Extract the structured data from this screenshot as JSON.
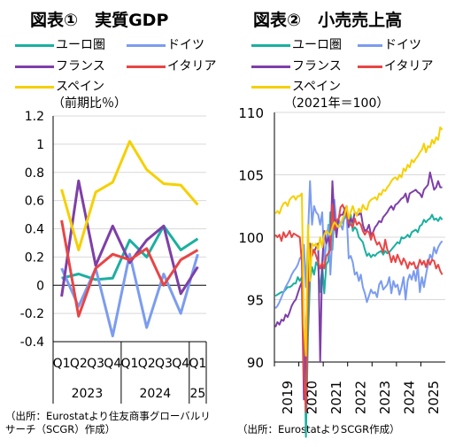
{
  "colors": {
    "euro": "#1ab0a0",
    "germany": "#7b9cf0",
    "france": "#7e3fa8",
    "italy": "#e84545",
    "spain": "#f5d000",
    "grid": "#d9d9d9",
    "axis": "#000000"
  },
  "chart1": {
    "title": "図表①　実質GDP",
    "legend": [
      "ユーロ圏",
      "ドイツ",
      "フランス",
      "イタリア",
      "スペイン"
    ],
    "unit": "（前期比％）",
    "note": [
      "（出所：Eurostatより住友商事グローバルリ",
      "サーチ（SCGR）作成）"
    ]
  },
  "chart2": {
    "title": "図表②　小売売上高",
    "legend": [
      "ユーロ圏",
      "ドイツ",
      "フランス",
      "イタリア",
      "スペイン"
    ],
    "unit": "（2021年＝100）",
    "note": "（出所：EurostatよりSCGR作成）"
  },
  "chart_data": [
    {
      "type": "line",
      "title": "図表①　実質GDP",
      "ylabel": "（前期比％）",
      "ylim": [
        -0.4,
        1.2
      ],
      "yticks": [
        "1.2",
        "1",
        "0.8",
        "0.6",
        "0.4",
        "0.2",
        "0",
        "-0.2",
        "-0.4"
      ],
      "categories": [
        "Q1",
        "Q2",
        "Q3",
        "Q4",
        "Q1",
        "Q2",
        "Q3",
        "Q4",
        "Q1"
      ],
      "year_labels": [
        "2023",
        "2024",
        "25"
      ],
      "series": [
        {
          "name": "ユーロ圏",
          "values": [
            0.05,
            0.08,
            0.04,
            0.05,
            0.32,
            0.2,
            0.42,
            0.25,
            0.33
          ]
        },
        {
          "name": "ドイツ",
          "values": [
            0.12,
            -0.15,
            0.12,
            -0.36,
            0.22,
            -0.3,
            0.08,
            -0.2,
            0.22
          ]
        },
        {
          "name": "フランス",
          "values": [
            -0.08,
            0.74,
            0.14,
            0.42,
            0.16,
            0.32,
            0.42,
            -0.06,
            0.13
          ]
        },
        {
          "name": "イタリア",
          "values": [
            0.46,
            -0.22,
            0.12,
            0.22,
            0.18,
            0.26,
            0.0,
            0.18,
            0.25
          ]
        },
        {
          "name": "スペイン",
          "values": [
            0.68,
            0.25,
            0.66,
            0.73,
            1.02,
            0.82,
            0.72,
            0.71,
            0.57
          ]
        }
      ]
    },
    {
      "type": "line",
      "title": "図表②　小売売上高",
      "ylabel": "（2021年＝100）",
      "ylim": [
        90,
        110
      ],
      "yticks": [
        "110",
        "105",
        "100",
        "95",
        "90"
      ],
      "xlabels": [
        "2019",
        "2020",
        "2021",
        "2022",
        "2023",
        "2024",
        "2025"
      ],
      "x_start": "2019-01",
      "series": [
        {
          "name": "ユーロ圏",
          "values": [
            95.3,
            95.4,
            95.5,
            95.6,
            95.6,
            95.8,
            96.0,
            96.0,
            96.1,
            96.3,
            96.3,
            96.8,
            96.5,
            96.8,
            93.5,
            84.0,
            92.0,
            96.5,
            97.6,
            97.0,
            98.0,
            97.7,
            95.6,
            97.8,
            95.5,
            97.8,
            98.1,
            102.0,
            99.0,
            102.3,
            101.0,
            100.8,
            101.0,
            101.3,
            101.5,
            101.8,
            101.0,
            101.8,
            100.5,
            100.8,
            100.6,
            100.0,
            99.8,
            99.6,
            99.0,
            98.5,
            98.7,
            98.4,
            98.6,
            98.5,
            98.7,
            98.8,
            98.9,
            98.6,
            98.9,
            98.7,
            98.8,
            99.0,
            99.2,
            99.4,
            99.6,
            99.5,
            100.0,
            99.9,
            100.0,
            100.2,
            100.0,
            100.4,
            100.5,
            100.6,
            100.4,
            100.9,
            101.0,
            101.4,
            101.2,
            101.4,
            101.5,
            101.8,
            101.4,
            101.5,
            101.3,
            101.6,
            101.4
          ]
        },
        {
          "name": "ドイツ",
          "values": [
            94.3,
            94.5,
            94.8,
            95.2,
            95.6,
            96.0,
            96.3,
            96.6,
            97.0,
            97.3,
            97.5,
            97.8,
            98.3,
            98.5,
            99.4,
            96.0,
            100.0,
            104.5,
            101.0,
            102.5,
            102.0,
            101.8,
            101.0,
            102.0,
            98.0,
            99.5,
            101.0,
            97.0,
            100.0,
            103.0,
            101.0,
            101.5,
            101.0,
            100.6,
            101.8,
            101.9,
            98.3,
            98.5,
            98.0,
            97.0,
            97.2,
            96.5,
            97.0,
            96.0,
            95.5,
            94.8,
            95.3,
            95.8,
            95.5,
            95.6,
            95.2,
            96.2,
            96.5,
            95.8,
            96.0,
            96.2,
            96.8,
            95.5,
            96.5,
            96.0,
            96.2,
            95.4,
            96.0,
            96.8,
            95.0,
            96.5,
            97.0,
            96.6,
            97.3,
            96.5,
            97.7,
            95.6,
            96.8,
            96.0,
            97.0,
            97.8,
            98.6,
            98.3,
            99.2,
            98.7,
            99.2,
            99.5,
            99.7
          ]
        },
        {
          "name": "フランス",
          "values": [
            92.8,
            93.2,
            93.0,
            93.4,
            93.3,
            93.8,
            93.6,
            94.0,
            94.5,
            94.8,
            95.0,
            95.5,
            96.0,
            96.4,
            87.0,
            92.0,
            97.5,
            99.5,
            99.0,
            98.8,
            99.2,
            99.5,
            90.0,
            98.0,
            100.5,
            99.5,
            100.0,
            99.0,
            104.5,
            101.5,
            100.0,
            101.5,
            101.8,
            101.8,
            102.2,
            102.5,
            100.8,
            101.5,
            101.2,
            102.0,
            101.8,
            101.8,
            102.0,
            101.0,
            100.5,
            100.6,
            101.0,
            100.2,
            100.4,
            100.8,
            101.0,
            101.3,
            101.2,
            101.6,
            101.8,
            102.0,
            102.3,
            102.5,
            102.2,
            102.6,
            102.7,
            102.9,
            103.1,
            103.2,
            103.5,
            102.8,
            103.5,
            103.6,
            103.7,
            103.8,
            103.6,
            103.5,
            103.2,
            103.8,
            104.0,
            104.2,
            105.2,
            104.5,
            103.8,
            104.0,
            104.5,
            104.0,
            104.0
          ]
        },
        {
          "name": "イタリア",
          "values": [
            100.2,
            100.0,
            100.2,
            99.7,
            100.4,
            100.0,
            100.2,
            100.5,
            100.0,
            100.3,
            100.2,
            100.1,
            100.0,
            98.0,
            89.0,
            86.0,
            95.0,
            99.0,
            98.5,
            99.0,
            98.5,
            98.0,
            97.5,
            98.0,
            97.5,
            98.5,
            98.7,
            99.0,
            102.6,
            100.6,
            101.4,
            101.4,
            102.4,
            102.6,
            102.2,
            101.8,
            101.2,
            101.0,
            100.8,
            101.5,
            101.0,
            101.2,
            101.0,
            100.5,
            100.2,
            100.5,
            100.4,
            99.8,
            100.4,
            99.8,
            99.4,
            99.6,
            99.2,
            98.8,
            99.8,
            99.0,
            98.7,
            98.0,
            98.5,
            98.0,
            98.6,
            98.2,
            97.8,
            98.3,
            98.0,
            97.5,
            98.0,
            97.8,
            98.0,
            97.5,
            97.6,
            98.2,
            97.8,
            98.1,
            97.6,
            98.2,
            97.8,
            98.2,
            98.1,
            97.5,
            97.8,
            97.3,
            97.0
          ]
        },
        {
          "name": "スペイン",
          "values": [
            101.9,
            102.1,
            101.9,
            102.4,
            102.7,
            102.8,
            102.5,
            103.0,
            103.2,
            103.3,
            103.0,
            103.3,
            103.3,
            103.5,
            93.0,
            90.5,
            101.0,
            96.5,
            99.5,
            99.3,
            99.5,
            99.0,
            100.0,
            99.2,
            100.2,
            100.5,
            100.3,
            100.2,
            100.8,
            101.2,
            101.0,
            100.8,
            101.0,
            101.5,
            101.8,
            102.5,
            101.5,
            102.0,
            102.5,
            102.0,
            101.7,
            102.3,
            102.0,
            102.6,
            102.3,
            102.2,
            102.8,
            103.0,
            103.1,
            103.2,
            103.0,
            103.5,
            103.4,
            103.8,
            103.7,
            104.0,
            104.2,
            104.5,
            104.7,
            104.8,
            104.6,
            105.0,
            104.8,
            105.5,
            105.3,
            105.8,
            105.6,
            106.2,
            106.0,
            106.3,
            106.5,
            106.8,
            107.0,
            107.5,
            106.8,
            107.3,
            107.2,
            107.8,
            107.5,
            108.0,
            107.8,
            108.8,
            108.6
          ]
        }
      ]
    }
  ]
}
